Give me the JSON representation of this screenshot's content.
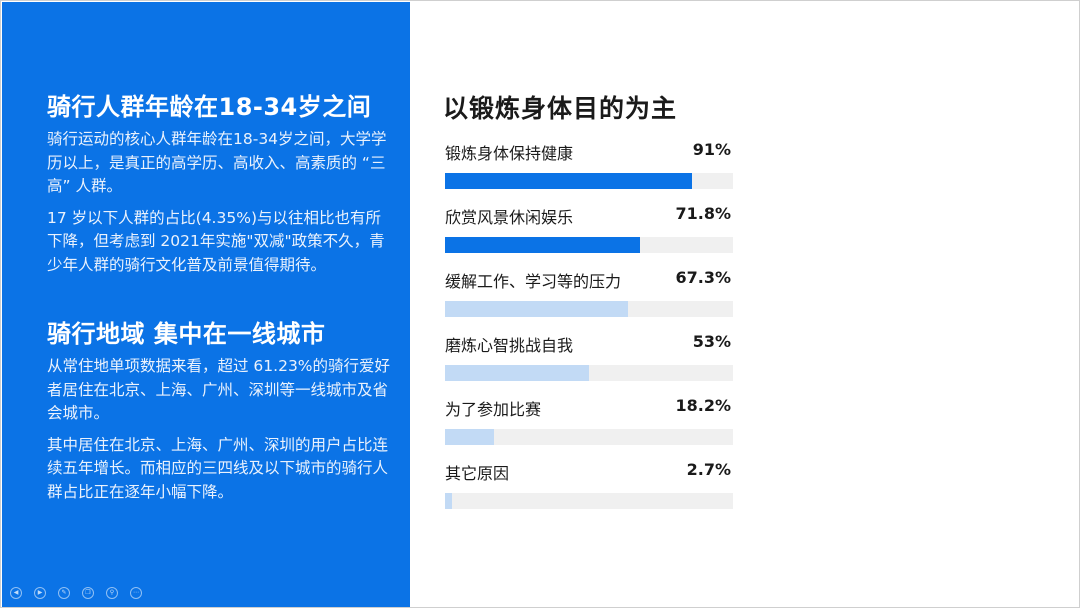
{
  "left": {
    "section1": {
      "title": "骑行人群年龄在18-34岁之间",
      "paragraphs": [
        "骑行运动的核心人群年龄在18-34岁之间，大学学历以上，是真正的高学历、高收入、高素质的 “三高” 人群。",
        "17 岁以下人群的占比(4.35%)与以往相比也有所下降，但考虑到 2021年实施\"双减\"政策不久，青少年人群的骑行文化普及前景值得期待。"
      ]
    },
    "section2": {
      "title": "骑行地域 集中在一线城市",
      "paragraphs": [
        "从常住地单项数据来看，超过 61.23%的骑行爱好者居住在北京、上海、广州、深圳等一线城市及省会城市。",
        "其中居住在北京、上海、广州、深圳的用户占比连续五年增长。而相应的三四线及以下城市的骑行人群占比正在逐年小幅下降。"
      ]
    },
    "controls": [
      "prev-icon",
      "next-icon",
      "pen-icon",
      "copy-icon",
      "zoom-icon",
      "more-icon"
    ]
  },
  "colors": {
    "panel": "#0b73e6",
    "bar_dark": "#0b73e6",
    "bar_light": "#c2daf5",
    "track": "#f0f0f0"
  },
  "chart_data": {
    "type": "bar",
    "orientation": "horizontal",
    "title": "以锻炼身体目的为主",
    "categories": [
      "锻炼身体保持健康",
      "欣赏风景休闲娱乐",
      "缓解工作、学习等的压力",
      "磨炼心智挑战自我",
      "为了参加比赛",
      "其它原因"
    ],
    "values": [
      91,
      71.8,
      67.3,
      53,
      18.2,
      2.7
    ],
    "value_labels": [
      "91%",
      "71.8%",
      "67.3%",
      "53%",
      "18.2%",
      "2.7%"
    ],
    "highlight": [
      true,
      true,
      false,
      false,
      false,
      false
    ],
    "xlim": [
      0,
      106
    ],
    "unit": "%",
    "grid": false,
    "legend": "none"
  }
}
